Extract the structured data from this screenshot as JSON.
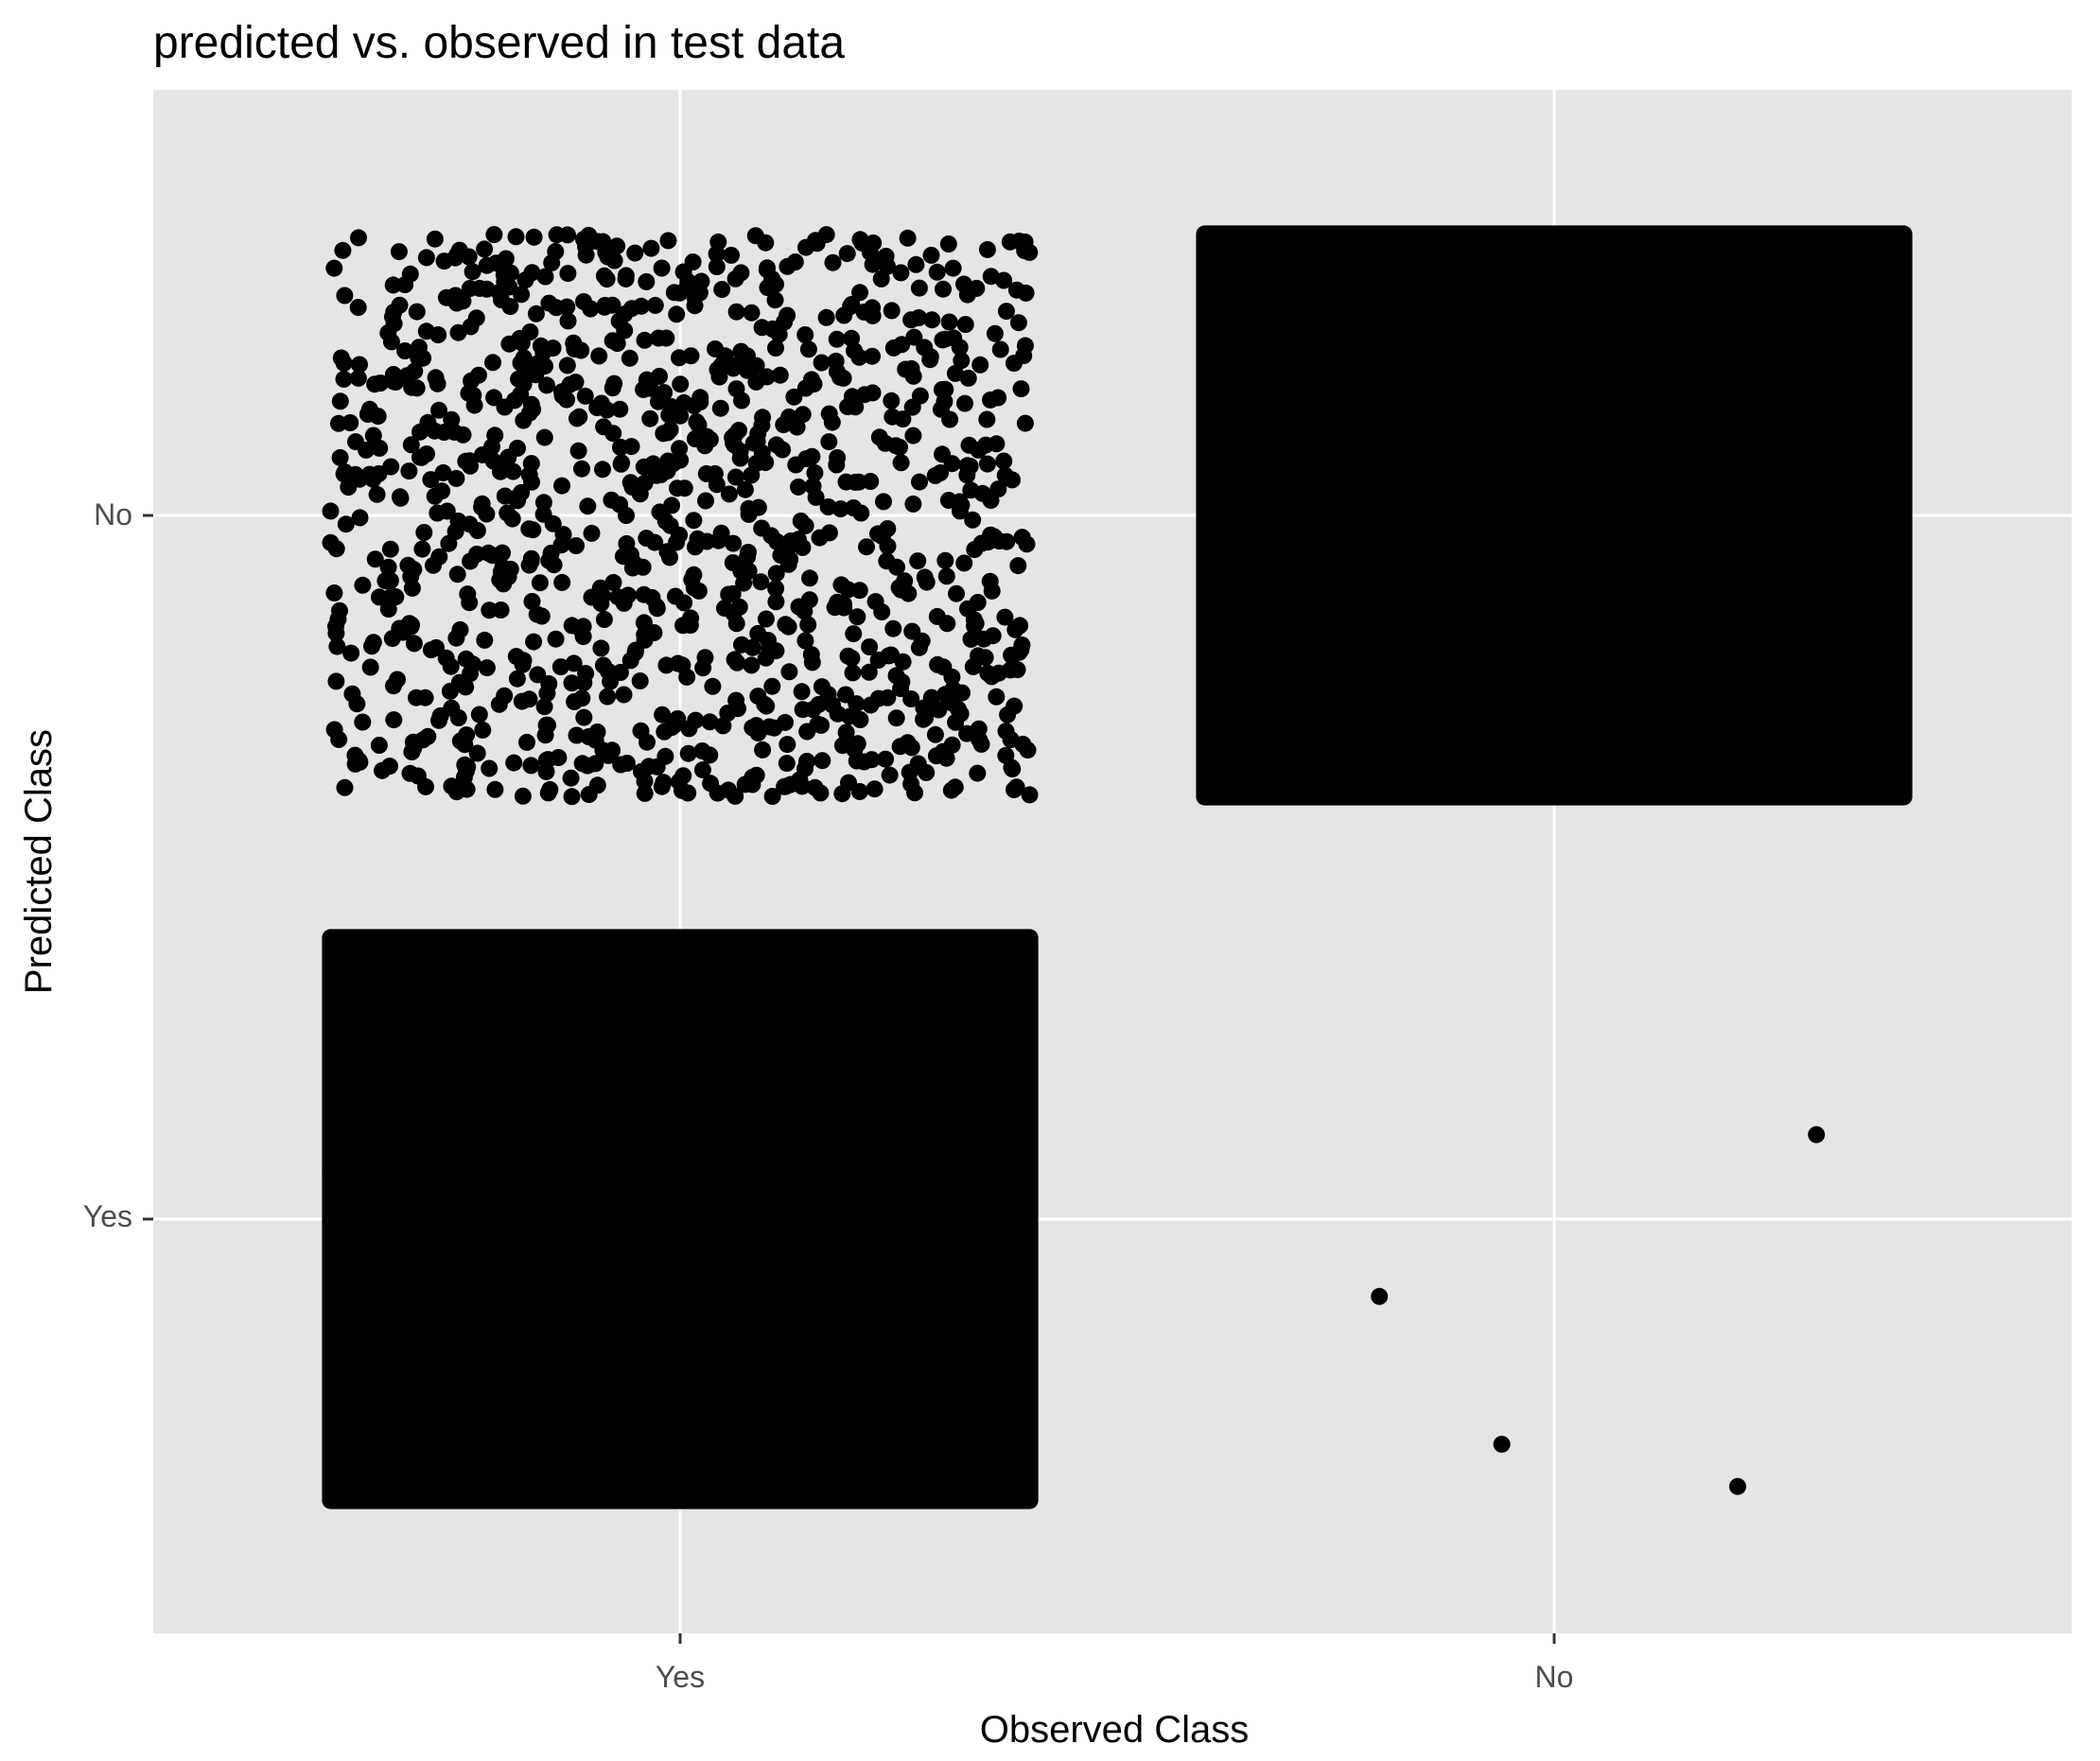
{
  "chart_data": {
    "type": "scatter",
    "title": "predicted vs. observed in test data",
    "xlabel": "Observed Class",
    "ylabel": "Predicted Class",
    "x_categories": [
      "Yes",
      "No"
    ],
    "y_categories": [
      "Yes",
      "No"
    ],
    "jitter": 0.4,
    "grid": true,
    "legend": "none",
    "colors": {
      "panel": "#e5e5e5",
      "grid": "#ffffff",
      "point": "#000000",
      "tick": "#333333"
    },
    "cells": [
      {
        "observed": "Yes",
        "predicted": "No",
        "count": 1100
      },
      {
        "observed": "Yes",
        "predicted": "Yes",
        "count": 60000
      },
      {
        "observed": "No",
        "predicted": "No",
        "count": 30000
      },
      {
        "observed": "No",
        "predicted": "Yes",
        "count": 4
      }
    ],
    "sparse_points": [
      {
        "observed": "No",
        "predicted": "Yes",
        "x": 1.8,
        "y": 0.89
      },
      {
        "observed": "No",
        "predicted": "Yes",
        "x": 2.3,
        "y": 1.12
      },
      {
        "observed": "No",
        "predicted": "Yes",
        "x": 1.94,
        "y": 0.68
      },
      {
        "observed": "No",
        "predicted": "Yes",
        "x": 2.21,
        "y": 0.62
      }
    ]
  }
}
